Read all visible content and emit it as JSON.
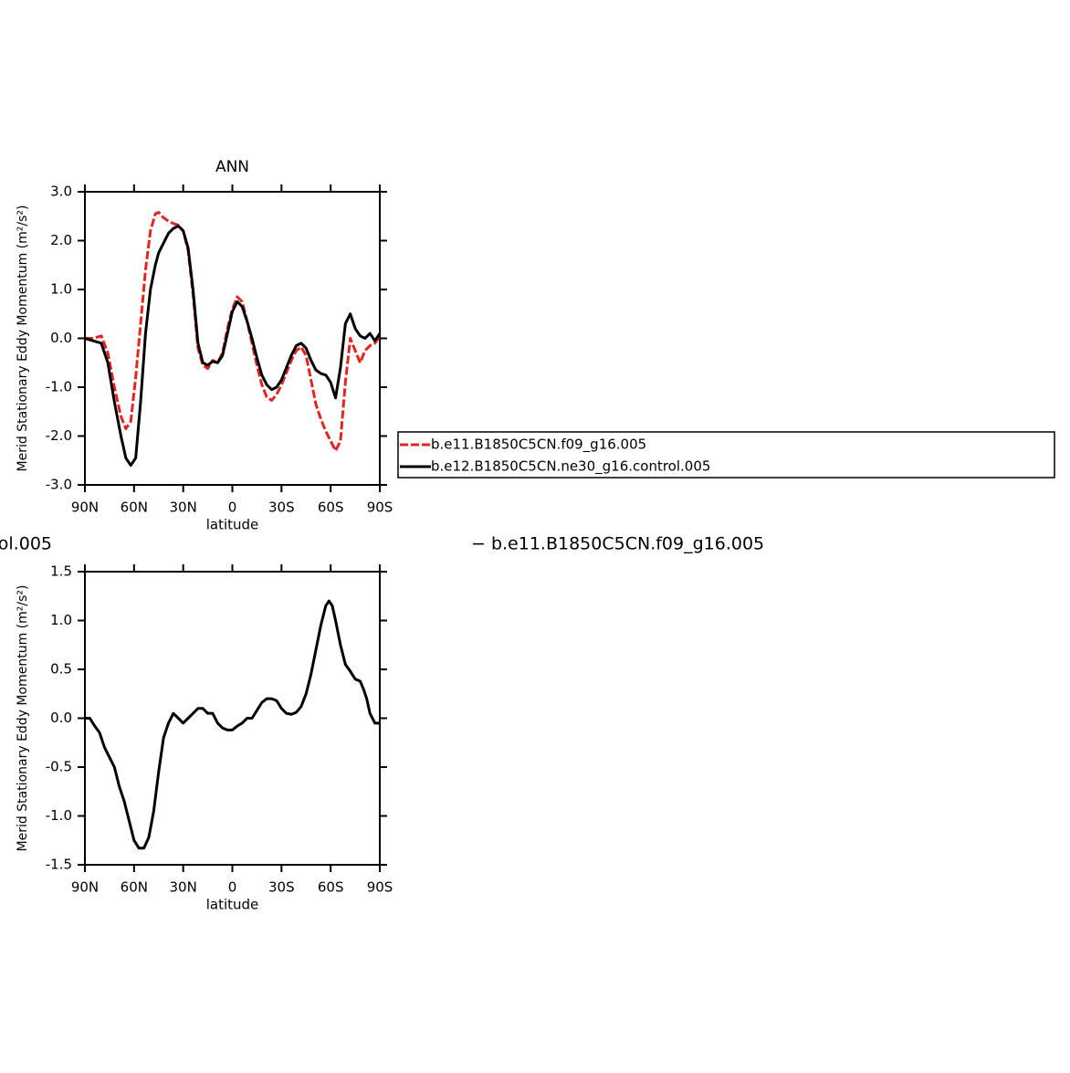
{
  "chart_data": [
    {
      "type": "line",
      "title": "ANN",
      "xlabel": "latitude",
      "ylabel": "Merid Stationary Eddy Momentum (m²/s²)",
      "x": [
        90,
        85,
        80,
        76,
        72,
        68,
        65,
        62,
        59,
        56,
        53,
        50,
        47,
        45,
        42,
        39,
        36,
        33,
        30,
        27,
        24,
        21,
        18,
        15,
        12,
        9,
        6,
        3,
        0,
        -3,
        -6,
        -9,
        -12,
        -15,
        -18,
        -21,
        -24,
        -27,
        -30,
        -33,
        -36,
        -39,
        -42,
        -45,
        -48,
        -51,
        -54,
        -57,
        -60,
        -63,
        -66,
        -69,
        -72,
        -75,
        -78,
        -81,
        -84,
        -87,
        -90
      ],
      "series": [
        {
          "name": "b.e11.B1850C5CN.f09_g16.005",
          "color": "#e8231e",
          "dashed": true,
          "values": [
            0,
            0,
            0.05,
            -0.3,
            -1.0,
            -1.6,
            -1.85,
            -1.7,
            -0.8,
            0.3,
            1.4,
            2.2,
            2.55,
            2.58,
            2.47,
            2.4,
            2.35,
            2.32,
            2.2,
            1.8,
            0.9,
            -0.2,
            -0.55,
            -0.62,
            -0.45,
            -0.5,
            -0.3,
            0.2,
            0.6,
            0.85,
            0.75,
            0.35,
            -0.1,
            -0.55,
            -0.95,
            -1.2,
            -1.27,
            -1.15,
            -0.95,
            -0.7,
            -0.45,
            -0.25,
            -0.18,
            -0.35,
            -0.85,
            -1.35,
            -1.65,
            -1.9,
            -2.1,
            -2.3,
            -2.1,
            -0.9,
            0.0,
            -0.25,
            -0.5,
            -0.25,
            -0.15,
            -0.1,
            0.05
          ]
        },
        {
          "name": "b.e12.B1850C5CN.ne30_g16.control.005",
          "color": "#000000",
          "dashed": false,
          "values": [
            0,
            -0.05,
            -0.1,
            -0.5,
            -1.3,
            -2.0,
            -2.45,
            -2.6,
            -2.45,
            -1.3,
            0.1,
            1.0,
            1.5,
            1.75,
            1.95,
            2.15,
            2.25,
            2.3,
            2.2,
            1.85,
            1.0,
            -0.1,
            -0.5,
            -0.55,
            -0.47,
            -0.5,
            -0.35,
            0.1,
            0.55,
            0.75,
            0.65,
            0.35,
            0.0,
            -0.4,
            -0.75,
            -0.95,
            -1.05,
            -1.0,
            -0.85,
            -0.6,
            -0.35,
            -0.15,
            -0.1,
            -0.2,
            -0.45,
            -0.65,
            -0.72,
            -0.75,
            -0.9,
            -1.22,
            -0.6,
            0.3,
            0.5,
            0.2,
            0.05,
            0.0,
            0.1,
            -0.05,
            0.1
          ]
        }
      ],
      "xlim": [
        90,
        -90
      ],
      "xticks": [
        {
          "value": 90,
          "label": "90N"
        },
        {
          "value": 60,
          "label": "60N"
        },
        {
          "value": 30,
          "label": "30N"
        },
        0,
        {
          "value": -30,
          "label": "30S"
        },
        {
          "value": -60,
          "label": "60S"
        },
        {
          "value": -90,
          "label": "90S"
        }
      ],
      "ylim": [
        -3,
        3
      ],
      "yticks": [
        {
          "value": -3,
          "label": "-3.0"
        },
        {
          "value": -2,
          "label": "-2.0"
        },
        {
          "value": -1,
          "label": "-1.0"
        },
        {
          "value": 0,
          "label": "0.0"
        },
        {
          "value": 1,
          "label": "1.0"
        },
        {
          "value": 2,
          "label": "2.0"
        },
        {
          "value": 3,
          "label": "3.0"
        }
      ],
      "legend": "right"
    },
    {
      "type": "line",
      "title_left": "ol.005",
      "title_right": "− b.e11.B1850C5CN.f09_g16.005",
      "xlabel": "latitude",
      "ylabel": "Merid Stationary Eddy Momentum (m²/s²)",
      "x": [
        90,
        87,
        84,
        81,
        78,
        75,
        72,
        69,
        66,
        63,
        60,
        57,
        54,
        51,
        48,
        45,
        42,
        39,
        36,
        33,
        30,
        27,
        24,
        21,
        18,
        15,
        12,
        9,
        6,
        3,
        0,
        -3,
        -6,
        -9,
        -12,
        -15,
        -18,
        -21,
        -24,
        -27,
        -30,
        -33,
        -36,
        -39,
        -42,
        -45,
        -48,
        -51,
        -54,
        -57,
        -59,
        -61,
        -63,
        -66,
        -69,
        -72,
        -75,
        -78,
        -80,
        -82,
        -84,
        -87,
        -90
      ],
      "series": [
        {
          "color": "#000000",
          "dashed": false,
          "values": [
            0,
            0.0,
            -0.08,
            -0.15,
            -0.3,
            -0.4,
            -0.5,
            -0.7,
            -0.85,
            -1.05,
            -1.25,
            -1.33,
            -1.33,
            -1.22,
            -0.95,
            -0.55,
            -0.2,
            -0.05,
            0.05,
            0.0,
            -0.05,
            0.0,
            0.05,
            0.1,
            0.1,
            0.05,
            0.05,
            -0.05,
            -0.1,
            -0.12,
            -0.12,
            -0.08,
            -0.05,
            0.0,
            0.0,
            0.08,
            0.16,
            0.2,
            0.2,
            0.18,
            0.1,
            0.05,
            0.04,
            0.06,
            0.12,
            0.25,
            0.45,
            0.7,
            0.95,
            1.15,
            1.2,
            1.15,
            1.0,
            0.75,
            0.55,
            0.48,
            0.4,
            0.38,
            0.3,
            0.2,
            0.05,
            -0.05,
            -0.05
          ]
        }
      ],
      "xlim": [
        90,
        -90
      ],
      "xticks": [
        {
          "value": 90,
          "label": "90N"
        },
        {
          "value": 60,
          "label": "60N"
        },
        {
          "value": 30,
          "label": "30N"
        },
        0,
        {
          "value": -30,
          "label": "30S"
        },
        {
          "value": -60,
          "label": "60S"
        },
        {
          "value": -90,
          "label": "90S"
        }
      ],
      "ylim": [
        -1.5,
        1.5
      ],
      "yticks": [
        -1.5,
        {
          "value": -1,
          "label": "-1.0"
        },
        -0.5,
        {
          "value": 0,
          "label": "0.0"
        },
        0.5,
        {
          "value": 1,
          "label": "1.0"
        },
        1.5
      ]
    }
  ]
}
